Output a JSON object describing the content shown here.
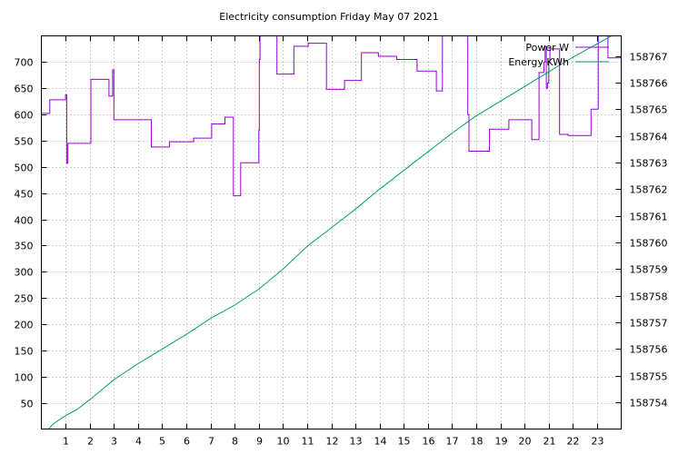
{
  "chart_data": {
    "type": "line",
    "title": "Electricity consumption Friday May 07 2021",
    "xlabel": "",
    "ylabel": "",
    "y2label": "",
    "xlim": [
      0,
      24
    ],
    "ylim": [
      0,
      750
    ],
    "y2lim": [
      158753.0,
      158767.75
    ],
    "grid": true,
    "legend_position": "top-right",
    "x_ticks": [
      1,
      2,
      3,
      4,
      5,
      6,
      7,
      8,
      9,
      10,
      11,
      12,
      13,
      14,
      15,
      16,
      17,
      18,
      19,
      20,
      21,
      22,
      23
    ],
    "y_ticks": [
      50,
      100,
      150,
      200,
      250,
      300,
      350,
      400,
      450,
      500,
      550,
      600,
      650,
      700
    ],
    "y2_ticks": [
      158754,
      158755,
      158756,
      158757,
      158758,
      158759,
      158760,
      158761,
      158762,
      158763,
      158764,
      158765,
      158766,
      158767
    ],
    "series": [
      {
        "name": "Power W",
        "axis": "left",
        "color": "#9400d3",
        "step": true,
        "x": [
          0,
          0.35,
          1.0,
          1.05,
          1.1,
          1.8,
          2.05,
          2.8,
          2.95,
          3.0,
          4.55,
          5.3,
          6.3,
          7.05,
          7.6,
          7.95,
          8.25,
          9.0,
          9.02,
          9.05,
          9.07,
          9.12,
          9.75,
          10.45,
          11.05,
          11.8,
          12.55,
          13.25,
          13.95,
          14.7,
          15.55,
          16.35,
          16.6,
          16.75,
          17.65,
          17.7,
          18.55,
          19.35,
          20.0,
          20.3,
          20.6,
          20.8,
          20.85,
          20.9,
          20.95,
          21.0,
          21.05,
          21.45,
          21.8,
          22.75,
          23.05,
          23.45,
          24.0
        ],
        "values": [
          602,
          628,
          638,
          507,
          545,
          545,
          667,
          635,
          685,
          590,
          538,
          548,
          555,
          582,
          595,
          445,
          508,
          570,
          705,
          752,
          752,
          752,
          677,
          730,
          736,
          648,
          665,
          718,
          711,
          705,
          683,
          645,
          752,
          752,
          600,
          530,
          572,
          590,
          590,
          552,
          680,
          700,
          730,
          650,
          660,
          700,
          725,
          562,
          560,
          610,
          752,
          708,
          708
        ]
      },
      {
        "name": "Energy KWh",
        "axis": "right",
        "color": "#009e73",
        "step": false,
        "x": [
          0.3,
          0.5,
          1.0,
          1.5,
          2.0,
          3.0,
          4.0,
          5.0,
          6.0,
          7.0,
          8.0,
          9.0,
          10.0,
          11.0,
          12.0,
          13.0,
          14.0,
          15.0,
          16.0,
          17.0,
          18.0,
          19.0,
          20.0,
          21.0,
          22.0,
          23.0,
          24.0
        ],
        "values": [
          158753.0,
          158753.2,
          158753.5,
          158753.75,
          158754.1,
          158754.85,
          158755.45,
          158756.0,
          158756.55,
          158757.15,
          158757.65,
          158758.25,
          158759.0,
          158759.85,
          158760.55,
          158761.25,
          158762.0,
          158762.7,
          158763.4,
          158764.1,
          158764.75,
          158765.3,
          158765.85,
          158766.4,
          158766.95,
          158767.45,
          158767.95
        ]
      }
    ]
  }
}
